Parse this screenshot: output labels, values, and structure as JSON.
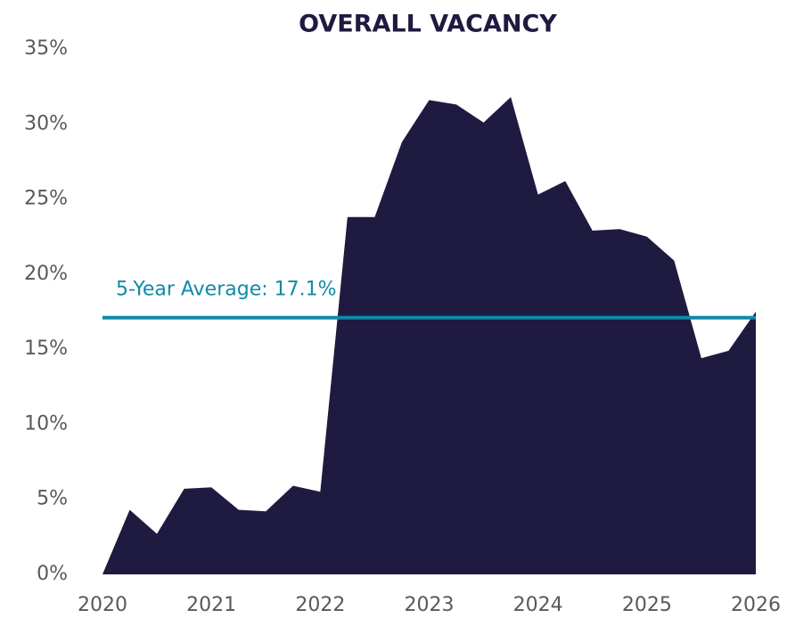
{
  "chart_data": {
    "type": "area",
    "title": "OVERALL VACANCY",
    "x": [
      2020,
      2020.25,
      2020.5,
      2020.75,
      2021,
      2021.25,
      2021.5,
      2021.75,
      2022,
      2022.25,
      2022.5,
      2022.75,
      2023,
      2023.25,
      2023.5,
      2023.75,
      2024,
      2024.25,
      2024.5,
      2024.75,
      2025,
      2025.25,
      2025.5,
      2025.75,
      2026
    ],
    "series": [
      {
        "color": "#1e1a40",
        "values": [
          0,
          4.3,
          2.7,
          5.7,
          5.8,
          4.3,
          4.2,
          5.9,
          5.5,
          23.8,
          23.8,
          28.8,
          31.6,
          31.3,
          30.1,
          31.8,
          25.3,
          26.2,
          22.9,
          23.0,
          22.5,
          20.9,
          14.4,
          14.9,
          17.5
        ]
      }
    ],
    "average": {
      "label": "5-Year Average: 17.1%",
      "value": 17.1,
      "color": "#0f8aa8"
    },
    "xlim": [
      2020,
      2026
    ],
    "xticks": [
      2020,
      2021,
      2022,
      2023,
      2024,
      2025,
      2026
    ],
    "ylim": [
      0,
      35
    ],
    "yticks": [
      {
        "value": 0,
        "label": "0%"
      },
      {
        "value": 5,
        "label": "5%"
      },
      {
        "value": 10,
        "label": "10%"
      },
      {
        "value": 15,
        "label": "15%"
      },
      {
        "value": 20,
        "label": "20%"
      },
      {
        "value": 25,
        "label": "25%"
      },
      {
        "value": 30,
        "label": "30%"
      },
      {
        "value": 35,
        "label": "35%"
      }
    ]
  }
}
